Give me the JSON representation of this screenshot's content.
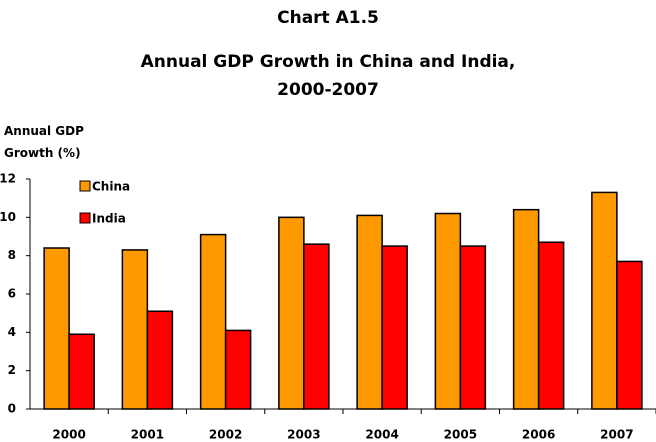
{
  "chart_data": {
    "type": "bar",
    "title": "Chart A1.5",
    "subtitle": "Annual GDP Growth in China and India, 2000-2007",
    "y_label": "Annual GDP Growth (%)",
    "categories": [
      "2000",
      "2001",
      "2002",
      "2003",
      "2004",
      "2005",
      "2006",
      "2007"
    ],
    "series": [
      {
        "name": "China",
        "color": "#ff9900",
        "values": [
          8.4,
          8.3,
          9.1,
          10.0,
          10.1,
          10.2,
          10.4,
          11.3
        ]
      },
      {
        "name": "India",
        "color": "#ff0000",
        "values": [
          3.9,
          5.1,
          4.1,
          8.6,
          8.5,
          8.5,
          8.7,
          7.7
        ]
      }
    ],
    "ylim": [
      0,
      12
    ],
    "yticks": [
      0,
      2,
      4,
      6,
      8,
      10,
      12
    ],
    "legend": "upper left"
  }
}
